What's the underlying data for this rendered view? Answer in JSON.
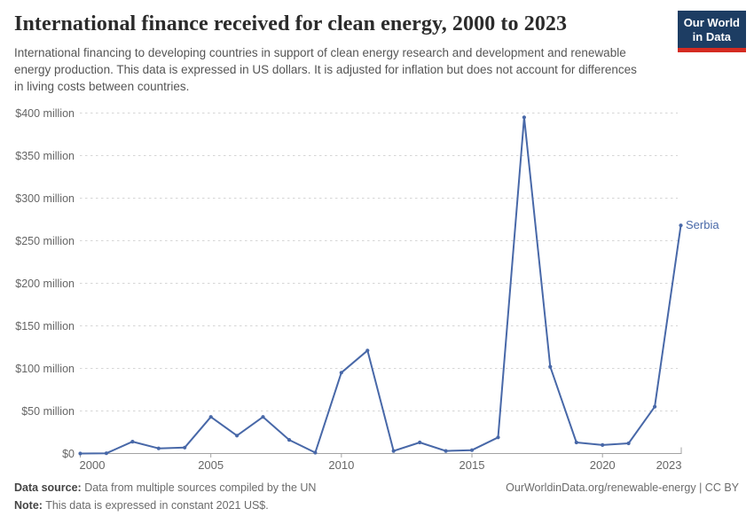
{
  "header": {
    "title": "International finance received for clean energy, 2000 to 2023",
    "subtitle": "International financing to developing countries in support of clean energy research and development and renewable energy production. This data is expressed in US dollars. It is adjusted for inflation but does not account for differences in living costs between countries."
  },
  "logo": {
    "line1": "Our World",
    "line2": "in Data",
    "bg_color": "#1d3d63",
    "accent_color": "#d42b21"
  },
  "chart_data": {
    "type": "line",
    "title": "International finance received for clean energy, 2000 to 2023",
    "entity": "Serbia",
    "unit": "US$ million",
    "x": [
      2000,
      2001,
      2002,
      2003,
      2004,
      2005,
      2006,
      2007,
      2008,
      2009,
      2010,
      2011,
      2012,
      2013,
      2014,
      2015,
      2016,
      2017,
      2018,
      2019,
      2020,
      2021,
      2022,
      2023
    ],
    "series": [
      {
        "name": "Serbia",
        "color": "#4868a8",
        "values": [
          0,
          0.3,
          14,
          6,
          7,
          43,
          21,
          43,
          16,
          1,
          95,
          121,
          3,
          13,
          3,
          4,
          19,
          395,
          102,
          13,
          10,
          12,
          55,
          268
        ]
      }
    ],
    "x_range": [
      2000,
      2023
    ],
    "ylim": [
      0,
      400
    ],
    "y_ticks": [
      {
        "value": 0,
        "label": "$0"
      },
      {
        "value": 50,
        "label": "$50 million"
      },
      {
        "value": 100,
        "label": "$100 million"
      },
      {
        "value": 150,
        "label": "$150 million"
      },
      {
        "value": 200,
        "label": "$200 million"
      },
      {
        "value": 250,
        "label": "$250 million"
      },
      {
        "value": 300,
        "label": "$300 million"
      },
      {
        "value": 350,
        "label": "$350 million"
      },
      {
        "value": 400,
        "label": "$400 million"
      }
    ],
    "x_ticks": [
      {
        "value": 2000,
        "label": "2000"
      },
      {
        "value": 2005,
        "label": "2005"
      },
      {
        "value": 2010,
        "label": "2010"
      },
      {
        "value": 2015,
        "label": "2015"
      },
      {
        "value": 2020,
        "label": "2020"
      },
      {
        "value": 2023,
        "label": "2023"
      }
    ],
    "grid": "dashed-horizontal",
    "legend": "end-of-line-label"
  },
  "footer": {
    "source_label": "Data source:",
    "source_text": "Data from multiple sources compiled by the UN",
    "note_label": "Note:",
    "note_text": "This data is expressed in constant 2021 US$.",
    "attribution": "OurWorldinData.org/renewable-energy | CC BY"
  },
  "colors": {
    "line": "#4868a8",
    "grid": "#d6d6d6",
    "axis": "#a3a3a3",
    "tick_text": "#666666"
  }
}
